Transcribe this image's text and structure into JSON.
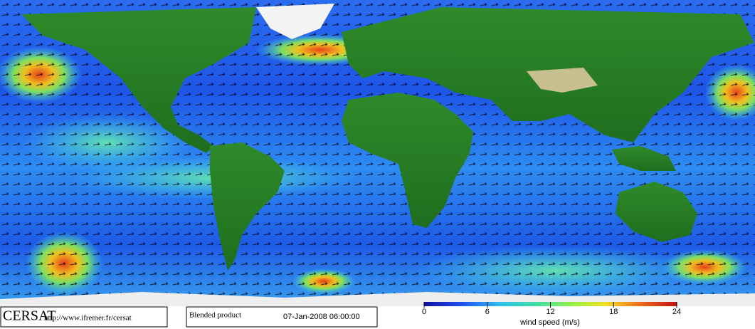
{
  "logo": "CERSAT",
  "url": "http://www.ifremer.fr/cersat",
  "product": "Blended product",
  "datetime": "07-Jan-2008 06:00:00",
  "colorbar": {
    "range": [
      0,
      24
    ],
    "ticks": [
      0,
      6,
      12,
      18,
      24
    ],
    "label": "wind speed (m/s)"
  }
}
